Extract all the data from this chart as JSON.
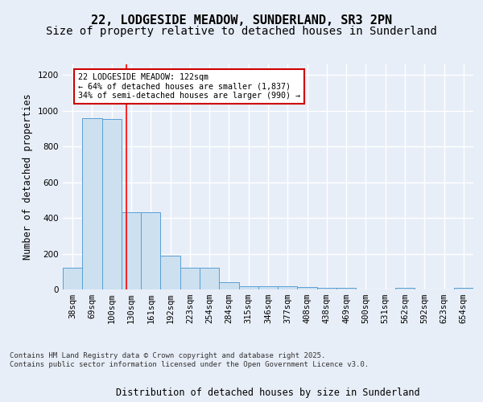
{
  "title_line1": "22, LODGESIDE MEADOW, SUNDERLAND, SR3 2PN",
  "title_line2": "Size of property relative to detached houses in Sunderland",
  "xlabel": "Distribution of detached houses by size in Sunderland",
  "ylabel": "Number of detached properties",
  "categories": [
    "38sqm",
    "69sqm",
    "100sqm",
    "130sqm",
    "161sqm",
    "192sqm",
    "223sqm",
    "254sqm",
    "284sqm",
    "315sqm",
    "346sqm",
    "377sqm",
    "408sqm",
    "438sqm",
    "469sqm",
    "500sqm",
    "531sqm",
    "562sqm",
    "592sqm",
    "623sqm",
    "654sqm"
  ],
  "values": [
    120,
    960,
    955,
    430,
    430,
    190,
    120,
    120,
    40,
    20,
    20,
    20,
    15,
    10,
    10,
    0,
    0,
    10,
    0,
    0,
    10
  ],
  "bar_color": "#cce0f0",
  "bar_edge_color": "#5a9fd4",
  "annotation_text": "22 LODGESIDE MEADOW: 122sqm\n← 64% of detached houses are smaller (1,837)\n34% of semi-detached houses are larger (990) →",
  "annotation_box_color": "#ffffff",
  "annotation_box_edge": "#cc0000",
  "ylim": [
    0,
    1260
  ],
  "yticks": [
    0,
    200,
    400,
    600,
    800,
    1000,
    1200
  ],
  "footer": "Contains HM Land Registry data © Crown copyright and database right 2025.\nContains public sector information licensed under the Open Government Licence v3.0.",
  "bg_color": "#e8eef8",
  "plot_bg_color": "#e8eef8",
  "grid_color": "#ffffff",
  "title_fontsize": 11,
  "subtitle_fontsize": 10,
  "axis_label_fontsize": 8.5,
  "tick_fontsize": 7.5,
  "footer_fontsize": 6.5,
  "red_line_index": 2.77
}
